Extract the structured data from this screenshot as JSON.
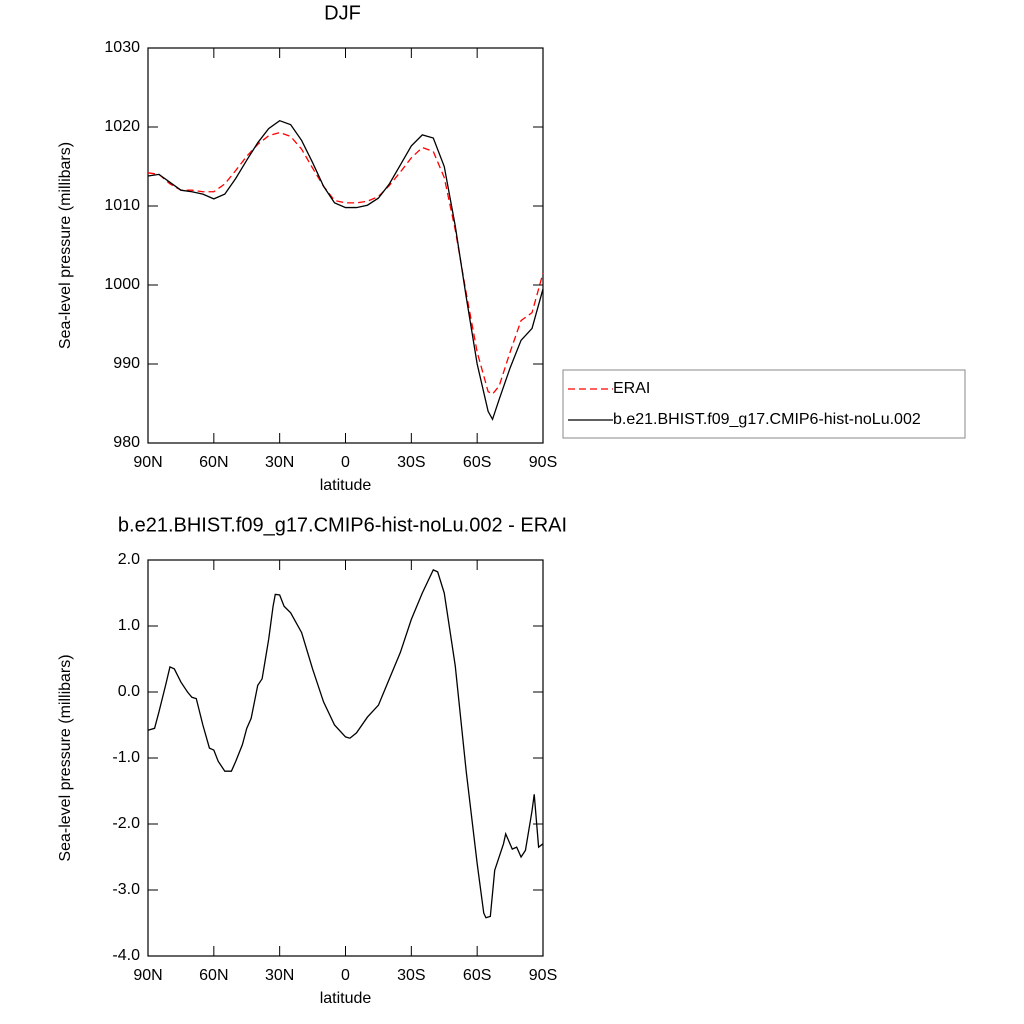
{
  "chart_data": [
    {
      "type": "line",
      "title": "DJF",
      "x_label": "latitude",
      "y_label": "Sea-level pressure (millibars)",
      "x": [
        90,
        85,
        80,
        75,
        70,
        65,
        60,
        55,
        50,
        45,
        40,
        35,
        30,
        25,
        20,
        15,
        10,
        5,
        0,
        -5,
        -10,
        -15,
        -20,
        -25,
        -30,
        -35,
        -40,
        -45,
        -50,
        -55,
        -60,
        -65,
        -67,
        -70,
        -75,
        -80,
        -85,
        -90
      ],
      "series": [
        {
          "name": "ERAI",
          "color": "#ff0000",
          "dash": true,
          "values": [
            1014.2,
            1014.0,
            1012.8,
            1012.0,
            1012.0,
            1011.8,
            1011.8,
            1012.8,
            1014.5,
            1016.3,
            1017.8,
            1018.9,
            1019.3,
            1018.8,
            1017.2,
            1014.8,
            1012.5,
            1010.7,
            1010.4,
            1010.4,
            1010.6,
            1011.2,
            1012.6,
            1014.3,
            1016.1,
            1017.4,
            1016.9,
            1013.6,
            1007.0,
            999.0,
            991.5,
            986.5,
            986.2,
            987.2,
            991.5,
            995.5,
            996.5,
            1001.5
          ]
        },
        {
          "name": "b.e21.BHIST.f09_g17.CMIP6-hist-noLu.002",
          "color": "#000000",
          "dash": false,
          "values": [
            1013.8,
            1014.0,
            1013.0,
            1012.0,
            1011.8,
            1011.5,
            1010.9,
            1011.5,
            1013.5,
            1015.8,
            1018.0,
            1019.8,
            1020.8,
            1020.3,
            1018.3,
            1015.5,
            1012.5,
            1010.4,
            1009.8,
            1009.8,
            1010.1,
            1011.0,
            1012.8,
            1015.2,
            1017.6,
            1019.0,
            1018.6,
            1015.0,
            1007.5,
            998.5,
            990.0,
            984.0,
            983.0,
            985.5,
            989.5,
            993.0,
            994.5,
            999.5
          ]
        }
      ],
      "xlim": [
        90,
        -90
      ],
      "xticks": [
        {
          "value": 90,
          "label": "90N"
        },
        {
          "value": 60,
          "label": "60N"
        },
        {
          "value": 30,
          "label": "30N"
        },
        0,
        {
          "value": -30,
          "label": "30S"
        },
        {
          "value": -60,
          "label": "60S"
        },
        {
          "value": -90,
          "label": "90S"
        }
      ],
      "ylim": [
        980,
        1030
      ],
      "yticks": [
        980,
        990,
        1000,
        1010,
        1020,
        1030
      ],
      "legend": "right"
    },
    {
      "type": "line",
      "title": "b.e21.BHIST.f09_g17.CMIP6-hist-noLu.002 - ERAI",
      "x_label": "latitude",
      "y_label": "Sea-level pressure (millibars)",
      "x": [
        90,
        87,
        85,
        82,
        80,
        78,
        75,
        72,
        70,
        68,
        65,
        62,
        60,
        58,
        55,
        52,
        50,
        47,
        45,
        43,
        40,
        38,
        37,
        35,
        33,
        32,
        30,
        28,
        25,
        20,
        15,
        10,
        5,
        0,
        -2,
        -5,
        -10,
        -15,
        -20,
        -25,
        -30,
        -35,
        -40,
        -42,
        -45,
        -50,
        -55,
        -60,
        -63,
        -64,
        -66,
        -68,
        -72,
        -73,
        -76,
        -78,
        -80,
        -82,
        -85,
        -86,
        -88,
        -90
      ],
      "values": [
        -0.58,
        -0.55,
        -0.3,
        0.1,
        0.38,
        0.35,
        0.15,
        0.0,
        -0.08,
        -0.1,
        -0.5,
        -0.85,
        -0.88,
        -1.05,
        -1.2,
        -1.2,
        -1.05,
        -0.8,
        -0.55,
        -0.4,
        0.1,
        0.2,
        0.4,
        0.8,
        1.3,
        1.48,
        1.47,
        1.3,
        1.2,
        0.9,
        0.35,
        -0.15,
        -0.5,
        -0.68,
        -0.7,
        -0.62,
        -0.38,
        -0.2,
        0.2,
        0.6,
        1.1,
        1.5,
        1.85,
        1.82,
        1.5,
        0.4,
        -1.2,
        -2.6,
        -3.35,
        -3.42,
        -3.4,
        -2.7,
        -2.3,
        -2.15,
        -2.38,
        -2.35,
        -2.5,
        -2.4,
        -1.8,
        -1.55,
        -2.35,
        -2.3
      ],
      "color": "#000000",
      "xlim": [
        90,
        -90
      ],
      "xticks": [
        {
          "value": 90,
          "label": "90N"
        },
        {
          "value": 60,
          "label": "60N"
        },
        {
          "value": 30,
          "label": "30N"
        },
        0,
        {
          "value": -30,
          "label": "30S"
        },
        {
          "value": -60,
          "label": "60S"
        },
        {
          "value": -90,
          "label": "90S"
        }
      ],
      "ylim": [
        -4,
        2
      ],
      "yticks": [
        {
          "value": -4,
          "label": "-4.0"
        },
        {
          "value": -3,
          "label": "-3.0"
        },
        {
          "value": -2,
          "label": "-2.0"
        },
        {
          "value": -1,
          "label": "-1.0"
        },
        {
          "value": 0,
          "label": "0.0"
        },
        {
          "value": 1,
          "label": "1.0"
        },
        {
          "value": 2,
          "label": "2.0"
        }
      ]
    }
  ]
}
